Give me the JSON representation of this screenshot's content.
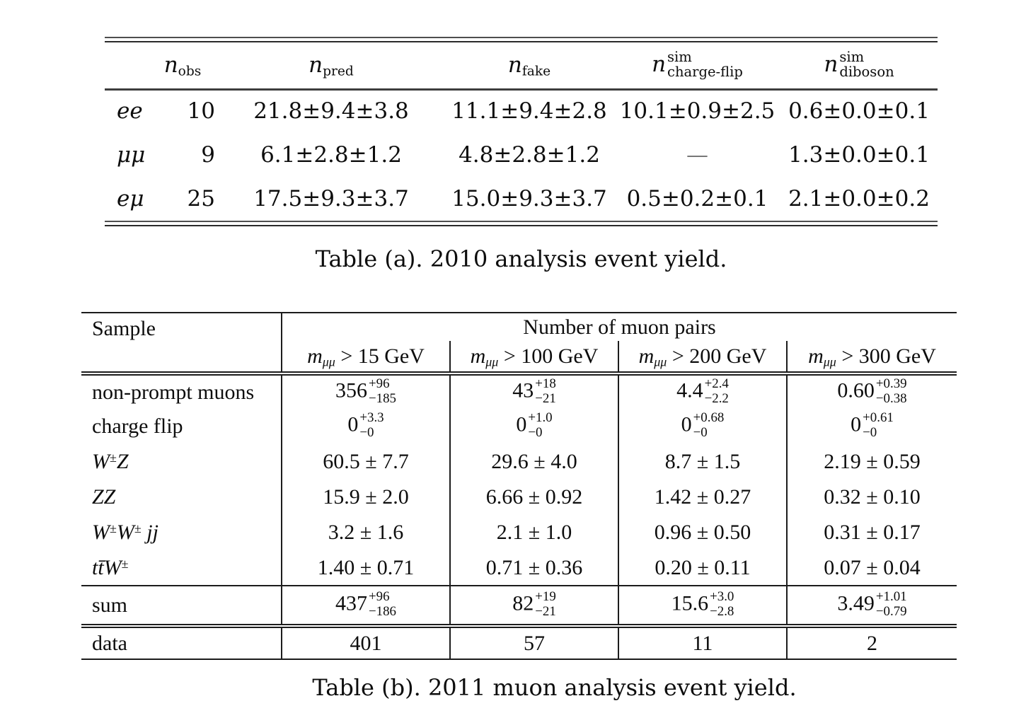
{
  "page": {
    "background": "#ffffff",
    "text_color": "#111111",
    "rule_color": "#1c1c1c"
  },
  "table_a": {
    "caption": "Table (a). 2010 analysis event yield.",
    "columns": [
      [
        {
          "t": "n",
          "i": true
        },
        {
          "sub": "obs"
        }
      ],
      [
        {
          "t": "n",
          "i": true
        },
        {
          "sub": "pred"
        }
      ],
      [
        {
          "t": "n",
          "i": true
        },
        {
          "sub": "fake"
        }
      ],
      [
        {
          "t": "n",
          "i": true
        },
        {
          "stack": {
            "up": "sim",
            "dn": "charge-flip"
          }
        }
      ],
      [
        {
          "t": "n",
          "i": true
        },
        {
          "stack": {
            "up": "sim",
            "dn": "diboson"
          }
        }
      ]
    ],
    "rows": [
      {
        "label": [
          {
            "t": "ee",
            "i": true
          }
        ],
        "cells": [
          [
            {
              "t": "10"
            }
          ],
          [
            {
              "t": "21.8±9.4±3.8"
            }
          ],
          [
            {
              "t": "11.1±9.4±2.8"
            }
          ],
          [
            {
              "t": "10.1±0.9±2.5"
            }
          ],
          [
            {
              "t": "0.6±0.0±0.1"
            }
          ]
        ]
      },
      {
        "label": [
          {
            "t": "μμ",
            "i": true
          }
        ],
        "cells": [
          [
            {
              "t": "9"
            }
          ],
          [
            {
              "t": "6.1±2.8±1.2"
            }
          ],
          [
            {
              "t": "4.8±2.8±1.2"
            }
          ],
          [
            {
              "t": "—",
              "dim": true
            }
          ],
          [
            {
              "t": "1.3±0.0±0.1"
            }
          ]
        ]
      },
      {
        "label": [
          {
            "t": "eμ",
            "i": true
          }
        ],
        "cells": [
          [
            {
              "t": "25"
            }
          ],
          [
            {
              "t": "17.5±9.3±3.7"
            }
          ],
          [
            {
              "t": "15.0±9.3±3.7"
            }
          ],
          [
            {
              "t": "0.5±0.2±0.1"
            }
          ],
          [
            {
              "t": "2.1±0.0±0.2"
            }
          ]
        ]
      }
    ]
  },
  "table_b": {
    "caption": "Table (b). 2011 muon analysis event yield.",
    "sample_header": "Sample",
    "group_header": "Number of muon pairs",
    "columns": [
      [
        {
          "t": "m",
          "i": true
        },
        {
          "sub": "μμ",
          "i": true
        },
        {
          "t": " > 15 GeV"
        }
      ],
      [
        {
          "t": "m",
          "i": true
        },
        {
          "sub": "μμ",
          "i": true
        },
        {
          "t": " > 100 GeV"
        }
      ],
      [
        {
          "t": "m",
          "i": true
        },
        {
          "sub": "μμ",
          "i": true
        },
        {
          "t": " > 200 GeV"
        }
      ],
      [
        {
          "t": "m",
          "i": true
        },
        {
          "sub": "μμ",
          "i": true
        },
        {
          "t": " > 300 GeV"
        }
      ]
    ],
    "rows": [
      {
        "section": "brow",
        "label": [
          {
            "t": "non-prompt muons"
          }
        ],
        "cells": [
          [
            {
              "t": "356"
            },
            {
              "stack": {
                "up": "+96",
                "dn": "−185"
              }
            }
          ],
          [
            {
              "t": "43"
            },
            {
              "stack": {
                "up": "+18",
                "dn": "−21"
              }
            }
          ],
          [
            {
              "t": "4.4"
            },
            {
              "stack": {
                "up": "+2.4",
                "dn": "−2.2"
              }
            }
          ],
          [
            {
              "t": "0.60"
            },
            {
              "stack": {
                "up": "+0.39",
                "dn": "−0.38"
              }
            }
          ]
        ]
      },
      {
        "section": "brow",
        "label": [
          {
            "t": "charge flip"
          }
        ],
        "cells": [
          [
            {
              "t": "0"
            },
            {
              "stack": {
                "up": "+3.3",
                "dn": "−0"
              }
            }
          ],
          [
            {
              "t": "0"
            },
            {
              "stack": {
                "up": "+1.0",
                "dn": "−0"
              }
            }
          ],
          [
            {
              "t": "0"
            },
            {
              "stack": {
                "up": "+0.68",
                "dn": "−0"
              }
            }
          ],
          [
            {
              "t": "0"
            },
            {
              "stack": {
                "up": "+0.61",
                "dn": "−0"
              }
            }
          ]
        ]
      },
      {
        "section": "brow",
        "label": [
          {
            "t": "W",
            "i": true
          },
          {
            "sup": "±"
          },
          {
            "t": "Z",
            "i": true
          }
        ],
        "cells": [
          [
            {
              "t": "60.5 ± 7.7"
            }
          ],
          [
            {
              "t": "29.6 ± 4.0"
            }
          ],
          [
            {
              "t": "8.7 ± 1.5"
            }
          ],
          [
            {
              "t": "2.19 ± 0.59"
            }
          ]
        ]
      },
      {
        "section": "brow",
        "label": [
          {
            "t": "ZZ",
            "i": true
          }
        ],
        "cells": [
          [
            {
              "t": "15.9 ± 2.0"
            }
          ],
          [
            {
              "t": "6.66 ± 0.92"
            }
          ],
          [
            {
              "t": "1.42 ± 0.27"
            }
          ],
          [
            {
              "t": "0.32 ± 0.10"
            }
          ]
        ]
      },
      {
        "section": "brow",
        "label": [
          {
            "t": "W",
            "i": true
          },
          {
            "sup": "±"
          },
          {
            "t": "W",
            "i": true
          },
          {
            "sup": "±"
          },
          {
            "t": " jj",
            "i": true
          }
        ],
        "cells": [
          [
            {
              "t": "3.2 ± 1.6"
            }
          ],
          [
            {
              "t": "2.1 ± 1.0"
            }
          ],
          [
            {
              "t": "0.96 ± 0.50"
            }
          ],
          [
            {
              "t": "0.31 ± 0.17"
            }
          ]
        ]
      },
      {
        "section": "brow",
        "label": [
          {
            "t": "tt̄W",
            "i": true
          },
          {
            "sup": "±"
          }
        ],
        "cells": [
          [
            {
              "t": "1.40 ± 0.71"
            }
          ],
          [
            {
              "t": "0.71 ± 0.36"
            }
          ],
          [
            {
              "t": "0.20 ± 0.11"
            }
          ],
          [
            {
              "t": "0.07 ± 0.04"
            }
          ]
        ]
      },
      {
        "section": "sum",
        "label": [
          {
            "t": "sum"
          }
        ],
        "cells": [
          [
            {
              "t": "437"
            },
            {
              "stack": {
                "up": "+96",
                "dn": "−186"
              }
            }
          ],
          [
            {
              "t": "82"
            },
            {
              "stack": {
                "up": "+19",
                "dn": "−21"
              }
            }
          ],
          [
            {
              "t": "15.6"
            },
            {
              "stack": {
                "up": "+3.0",
                "dn": "−2.8"
              }
            }
          ],
          [
            {
              "t": "3.49"
            },
            {
              "stack": {
                "up": "+1.01",
                "dn": "−0.79"
              }
            }
          ]
        ]
      },
      {
        "section": "data",
        "label": [
          {
            "t": "data"
          }
        ],
        "cells": [
          [
            {
              "t": "401"
            }
          ],
          [
            {
              "t": "57"
            }
          ],
          [
            {
              "t": "11"
            }
          ],
          [
            {
              "t": "2"
            }
          ]
        ]
      }
    ]
  }
}
